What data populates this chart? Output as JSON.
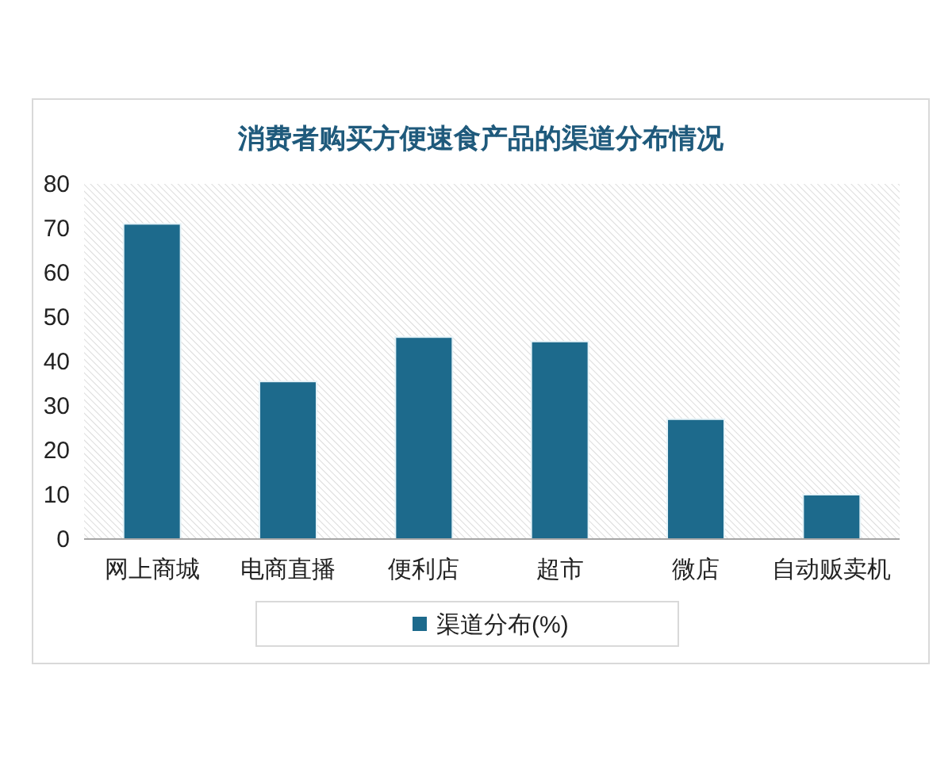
{
  "chart_data": {
    "type": "bar",
    "title": "消费者购买方便速食产品的渠道分布情况",
    "categories": [
      "网上商城",
      "电商直播",
      "便利店",
      "超市",
      "微店",
      "自动贩卖机"
    ],
    "series": [
      {
        "name": "渠道分布(%)",
        "color": "#1d6a8c",
        "values": [
          71,
          35.5,
          45.5,
          44.5,
          27,
          10
        ]
      }
    ],
    "ylim": [
      0,
      80
    ],
    "yticks": [
      0,
      10,
      20,
      30,
      40,
      50,
      60,
      70,
      80
    ],
    "legend": "bottom"
  }
}
